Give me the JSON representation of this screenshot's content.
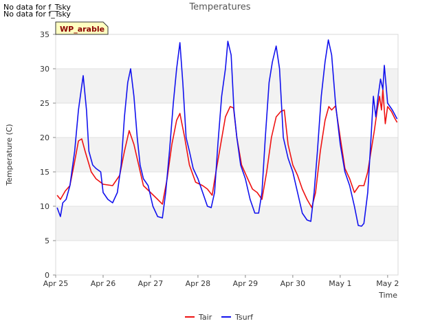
{
  "notes": [
    "No data for f_Tsky",
    "No data for f_Tsky"
  ],
  "chart_data": {
    "type": "line",
    "title": "Temperatures",
    "xlabel": "Time",
    "ylabel": "Temperature (C)",
    "ylim": [
      0,
      35
    ],
    "xlim": [
      0,
      7.22
    ],
    "yticks": [
      0,
      5,
      10,
      15,
      20,
      25,
      30,
      35
    ],
    "xticks": [
      {
        "pos": 0,
        "label": "Apr 25"
      },
      {
        "pos": 1,
        "label": "Apr 26"
      },
      {
        "pos": 2,
        "label": "Apr 27"
      },
      {
        "pos": 3,
        "label": "Apr 28"
      },
      {
        "pos": 4,
        "label": "Apr 29"
      },
      {
        "pos": 5,
        "label": "Apr 30"
      },
      {
        "pos": 6,
        "label": "May 1"
      },
      {
        "pos": 7,
        "label": "May 2"
      }
    ],
    "site_label": "WP_arable",
    "x_units": "days since Apr 25 00:00",
    "series": [
      {
        "name": "Tair",
        "color": "#ee1111",
        "points": [
          [
            0.03,
            11.6
          ],
          [
            0.1,
            11
          ],
          [
            0.2,
            12.2
          ],
          [
            0.3,
            13
          ],
          [
            0.4,
            16.5
          ],
          [
            0.48,
            19.5
          ],
          [
            0.55,
            19.8
          ],
          [
            0.62,
            18
          ],
          [
            0.75,
            15
          ],
          [
            0.85,
            14
          ],
          [
            1.0,
            13.2
          ],
          [
            1.2,
            13
          ],
          [
            1.35,
            14.5
          ],
          [
            1.45,
            18
          ],
          [
            1.55,
            21
          ],
          [
            1.65,
            19
          ],
          [
            1.75,
            16
          ],
          [
            1.85,
            13
          ],
          [
            2.0,
            12
          ],
          [
            2.15,
            11
          ],
          [
            2.25,
            10.3
          ],
          [
            2.35,
            14
          ],
          [
            2.45,
            19
          ],
          [
            2.55,
            22.5
          ],
          [
            2.62,
            23.5
          ],
          [
            2.72,
            20
          ],
          [
            2.82,
            16
          ],
          [
            2.95,
            13.5
          ],
          [
            3.1,
            13
          ],
          [
            3.2,
            12.5
          ],
          [
            3.3,
            11.6
          ],
          [
            3.38,
            15
          ],
          [
            3.48,
            19
          ],
          [
            3.58,
            23
          ],
          [
            3.68,
            24.5
          ],
          [
            3.75,
            24.3
          ],
          [
            3.82,
            20
          ],
          [
            3.92,
            16
          ],
          [
            4.05,
            14
          ],
          [
            4.15,
            12.5
          ],
          [
            4.25,
            12
          ],
          [
            4.35,
            11
          ],
          [
            4.45,
            15
          ],
          [
            4.55,
            20
          ],
          [
            4.65,
            23
          ],
          [
            4.75,
            23.8
          ],
          [
            4.82,
            24
          ],
          [
            4.9,
            19
          ],
          [
            5.0,
            16
          ],
          [
            5.1,
            14.5
          ],
          [
            5.2,
            12.5
          ],
          [
            5.3,
            11
          ],
          [
            5.4,
            9.8
          ],
          [
            5.48,
            12
          ],
          [
            5.58,
            18
          ],
          [
            5.68,
            22.5
          ],
          [
            5.76,
            24.5
          ],
          [
            5.82,
            24
          ],
          [
            5.9,
            24.6
          ],
          [
            6.0,
            20
          ],
          [
            6.1,
            15.5
          ],
          [
            6.2,
            14
          ],
          [
            6.3,
            12
          ],
          [
            6.4,
            13
          ],
          [
            6.5,
            13
          ],
          [
            6.58,
            15
          ],
          [
            6.65,
            18
          ],
          [
            6.72,
            21
          ],
          [
            6.78,
            24
          ],
          [
            6.83,
            26
          ],
          [
            6.87,
            24
          ],
          [
            6.9,
            27
          ],
          [
            6.95,
            22
          ],
          [
            7.0,
            24.5
          ],
          [
            7.08,
            23.8
          ],
          [
            7.15,
            22.8
          ],
          [
            7.2,
            22.2
          ]
        ]
      },
      {
        "name": "Tsurf",
        "color": "#1111ee",
        "points": [
          [
            0.03,
            9.8
          ],
          [
            0.1,
            8.5
          ],
          [
            0.15,
            10.5
          ],
          [
            0.22,
            11
          ],
          [
            0.3,
            13
          ],
          [
            0.4,
            18
          ],
          [
            0.48,
            24
          ],
          [
            0.55,
            27.5
          ],
          [
            0.58,
            29
          ],
          [
            0.65,
            24
          ],
          [
            0.7,
            18
          ],
          [
            0.78,
            16
          ],
          [
            0.85,
            15.5
          ],
          [
            0.95,
            15
          ],
          [
            1.0,
            12
          ],
          [
            1.1,
            11
          ],
          [
            1.2,
            10.5
          ],
          [
            1.3,
            12
          ],
          [
            1.38,
            16
          ],
          [
            1.45,
            23
          ],
          [
            1.52,
            28
          ],
          [
            1.58,
            30
          ],
          [
            1.65,
            26
          ],
          [
            1.72,
            20
          ],
          [
            1.78,
            16
          ],
          [
            1.85,
            14
          ],
          [
            1.95,
            13
          ],
          [
            2.05,
            10
          ],
          [
            2.15,
            8.5
          ],
          [
            2.25,
            8.3
          ],
          [
            2.32,
            12
          ],
          [
            2.4,
            18
          ],
          [
            2.48,
            25
          ],
          [
            2.55,
            30
          ],
          [
            2.62,
            33.8
          ],
          [
            2.68,
            28
          ],
          [
            2.75,
            20
          ],
          [
            2.82,
            18
          ],
          [
            2.9,
            15.5
          ],
          [
            3.0,
            14
          ],
          [
            3.1,
            12
          ],
          [
            3.2,
            10
          ],
          [
            3.28,
            9.8
          ],
          [
            3.35,
            12
          ],
          [
            3.42,
            19
          ],
          [
            3.5,
            26
          ],
          [
            3.58,
            30
          ],
          [
            3.63,
            34
          ],
          [
            3.7,
            32
          ],
          [
            3.76,
            24
          ],
          [
            3.82,
            20
          ],
          [
            3.9,
            16
          ],
          [
            4.0,
            14
          ],
          [
            4.1,
            11
          ],
          [
            4.2,
            9
          ],
          [
            4.28,
            9
          ],
          [
            4.35,
            12
          ],
          [
            4.42,
            20
          ],
          [
            4.5,
            28
          ],
          [
            4.57,
            31
          ],
          [
            4.65,
            33.3
          ],
          [
            4.72,
            30
          ],
          [
            4.8,
            20
          ],
          [
            4.9,
            17
          ],
          [
            5.0,
            15
          ],
          [
            5.1,
            12
          ],
          [
            5.2,
            9
          ],
          [
            5.3,
            8
          ],
          [
            5.38,
            7.8
          ],
          [
            5.45,
            12
          ],
          [
            5.52,
            18
          ],
          [
            5.6,
            26
          ],
          [
            5.68,
            31
          ],
          [
            5.75,
            34.2
          ],
          [
            5.82,
            32
          ],
          [
            5.9,
            25
          ],
          [
            6.0,
            19
          ],
          [
            6.1,
            15
          ],
          [
            6.2,
            13
          ],
          [
            6.3,
            10
          ],
          [
            6.38,
            7.2
          ],
          [
            6.45,
            7.1
          ],
          [
            6.5,
            7.5
          ],
          [
            6.58,
            12
          ],
          [
            6.65,
            20
          ],
          [
            6.7,
            26
          ],
          [
            6.75,
            23
          ],
          [
            6.8,
            26
          ],
          [
            6.85,
            28.5
          ],
          [
            6.9,
            27
          ],
          [
            6.93,
            30.5
          ],
          [
            7.0,
            25
          ],
          [
            7.1,
            24
          ],
          [
            7.2,
            22.7
          ]
        ]
      }
    ]
  }
}
